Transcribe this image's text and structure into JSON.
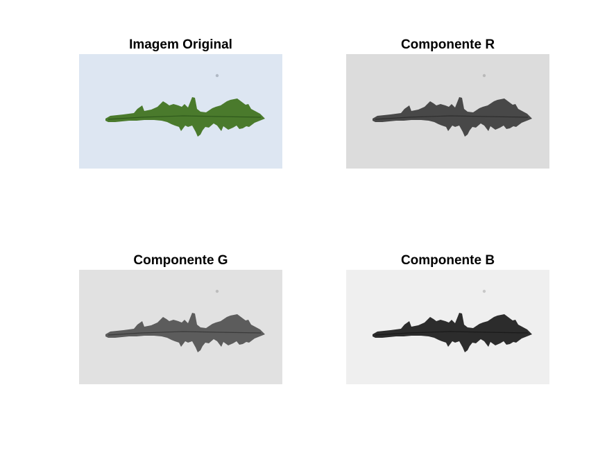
{
  "figure": {
    "panels": [
      {
        "id": "original",
        "title": "Imagem Original",
        "background_color": "#dde6f2",
        "leaf_color": "#4a7a2c",
        "vein_color": "#2f5a1c",
        "dot_color": "#b0b8c4"
      },
      {
        "id": "r",
        "title": "Componente R",
        "background_color": "#dcdcdc",
        "leaf_color": "#484848",
        "vein_color": "#2e2e2e",
        "dot_color": "#b9b9b9"
      },
      {
        "id": "g",
        "title": "Componente G",
        "background_color": "#e1e1e1",
        "leaf_color": "#5c5c5c",
        "vein_color": "#3a3a3a",
        "dot_color": "#bdbdbd"
      },
      {
        "id": "b",
        "title": "Componente B",
        "background_color": "#efefef",
        "leaf_color": "#2c2c2c",
        "vein_color": "#1a1a1a",
        "dot_color": "#c8c8c8"
      }
    ]
  }
}
